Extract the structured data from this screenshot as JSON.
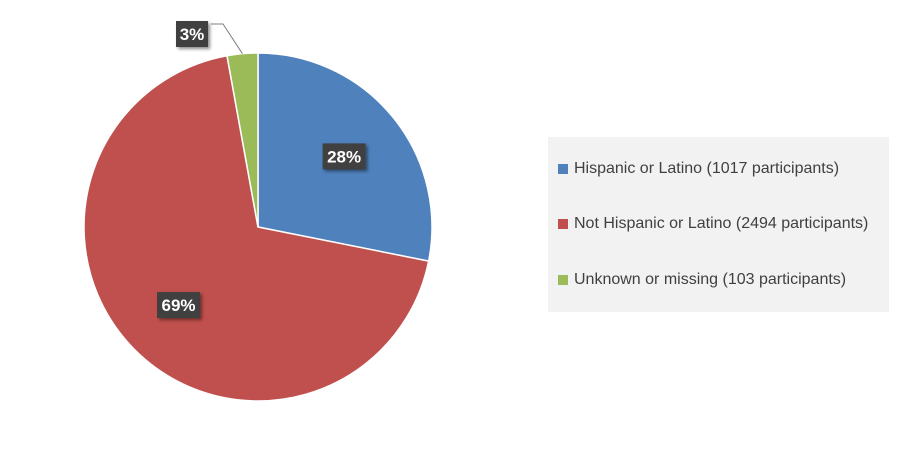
{
  "chart_data": {
    "type": "pie",
    "title": "",
    "categories": [
      "Hispanic or Latino (1017 participants)",
      "Not Hispanic or Latino (2494 participants)",
      "Unknown or missing (103 participants)"
    ],
    "values": [
      1017,
      2494,
      103
    ],
    "percent_labels": [
      "28%",
      "69%",
      "3%"
    ],
    "colors": [
      "#4f81bd",
      "#c0504d",
      "#9bbb59"
    ],
    "legend_position": "right",
    "start_angle": "top, clockwise"
  }
}
